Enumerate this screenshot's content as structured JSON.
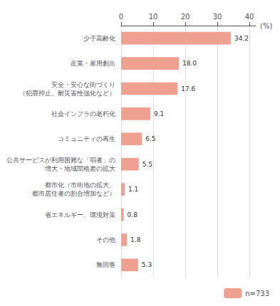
{
  "chart_data": {
    "type": "bar",
    "orientation": "horizontal",
    "xlabel": "(%)",
    "categories": [
      "少子高齢化",
      "産業・雇用創出",
      "安全・安心な街づくり\n（犯罪抑止、耐災害性強化など）",
      "社会インフラの老朽化",
      "コミュニティの再生",
      "公共サービスが利用困難な「弱者」の\n増大・地域間格差の拡大",
      "都市化（市街地の拡大、\n都市居住者の割合増加など）",
      "省エネルギー、環境対策",
      "その他",
      "無回答"
    ],
    "series": [
      {
        "name": "n=733",
        "color": "#f0a090",
        "values": [
          34.2,
          18.0,
          17.6,
          9.1,
          6.5,
          5.5,
          1.1,
          0.8,
          1.8,
          5.3
        ],
        "value_labels": [
          "34.2",
          "18.0",
          "17.6",
          "9.1",
          "6.5",
          "5.5",
          "1.1",
          "0.8",
          "1.8",
          "5.3"
        ]
      }
    ],
    "xlim": [
      0,
      42
    ],
    "xticks": [
      0,
      10,
      20,
      30,
      40
    ],
    "grid": true,
    "data_labels": true,
    "legend": "lower right"
  }
}
